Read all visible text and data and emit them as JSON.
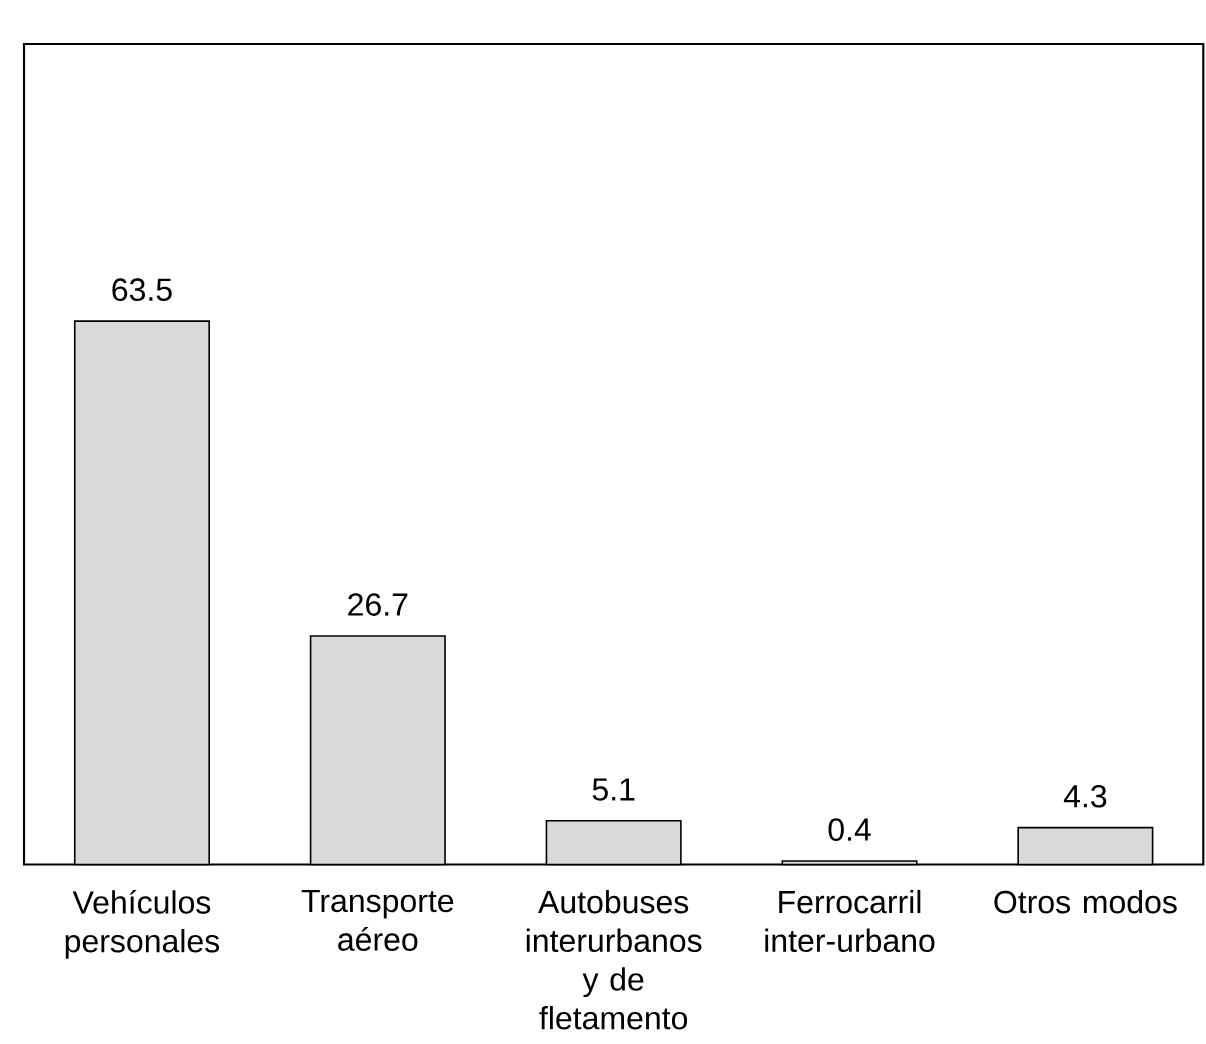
{
  "chart_data": {
    "type": "bar",
    "categories": [
      "Vehículos personales",
      "Transporte aéreo",
      "Autobuses interurbanos y de fletamento",
      "Ferrocarril inter-urbano",
      "Otros modos"
    ],
    "values": [
      63.5,
      26.7,
      5.1,
      0.4,
      4.3
    ],
    "color": "#d9d9d9",
    "data_labels": true
  }
}
